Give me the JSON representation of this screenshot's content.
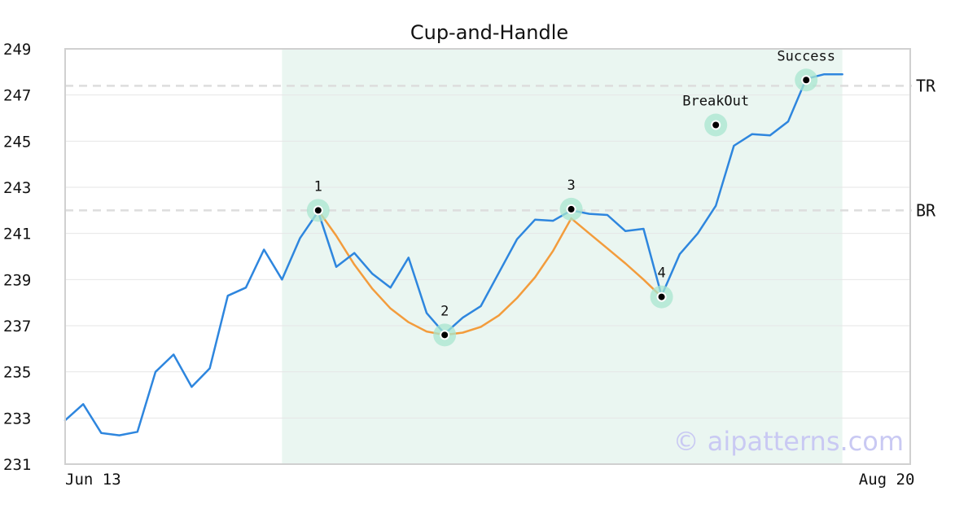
{
  "chart_data": {
    "type": "line",
    "title": "Cup-and-Handle",
    "watermark": "© aipatterns.com",
    "xlabel": "",
    "ylabel": "",
    "ylim": [
      231,
      249
    ],
    "yticks": [
      "231",
      "233",
      "235",
      "237",
      "239",
      "241",
      "243",
      "245",
      "247",
      "249"
    ],
    "xticks": [
      {
        "index": 0,
        "label": "Jun 13"
      },
      {
        "index": 47,
        "label": "Aug 20"
      }
    ],
    "grid": true,
    "colors": {
      "price": "#2e86de",
      "pattern": "#f39c3c",
      "marker": "#000000",
      "marker_halo": "#a8e6cf",
      "pattern_region": "#eaf6f1",
      "level_line": "#dddddd",
      "axis": "#d0d0d0"
    },
    "pattern_region": {
      "from_index": 12,
      "to_index": 43
    },
    "series": [
      {
        "values": [
          232.9,
          233.6,
          232.35,
          232.25,
          232.4,
          235.0,
          235.75,
          234.35,
          235.15,
          238.3,
          238.65,
          240.3,
          239.0,
          240.8,
          241.95,
          239.55,
          240.15,
          239.25,
          238.65,
          239.95,
          237.55,
          236.65,
          237.35,
          237.85,
          239.3,
          240.75,
          241.6,
          241.55,
          242.0,
          241.85,
          241.8,
          241.1,
          241.2,
          238.3,
          240.1,
          241.0,
          242.2,
          244.8,
          245.3,
          245.25,
          245.85,
          247.7,
          247.9,
          247.9
        ]
      }
    ],
    "pattern_curve": {
      "x": [
        14,
        15,
        16,
        17,
        18,
        19,
        20,
        21,
        22,
        23,
        24,
        25,
        26,
        27,
        28,
        29,
        30,
        31,
        32,
        33
      ],
      "values": [
        242.0,
        240.9,
        239.65,
        238.6,
        237.75,
        237.15,
        236.75,
        236.6,
        236.7,
        236.95,
        237.45,
        238.2,
        239.1,
        240.25,
        241.65,
        241.0,
        240.35,
        239.7,
        239.0,
        238.25
      ]
    },
    "levels": [
      {
        "label": "TR",
        "value": 247.4
      },
      {
        "label": "BR",
        "value": 242.0
      }
    ],
    "points": [
      {
        "label": "1",
        "x": 14,
        "value": 242.0,
        "label_pos": "above"
      },
      {
        "label": "2",
        "x": 21,
        "value": 236.6,
        "label_pos": "above"
      },
      {
        "label": "3",
        "x": 28,
        "value": 242.05,
        "label_pos": "above"
      },
      {
        "label": "4",
        "x": 33,
        "value": 238.25,
        "label_pos": "above"
      },
      {
        "label": "BreakOut",
        "x": 36,
        "value": 245.7,
        "label_pos": "above"
      },
      {
        "label": "Success",
        "x": 41,
        "value": 247.65,
        "label_pos": "above"
      }
    ]
  }
}
